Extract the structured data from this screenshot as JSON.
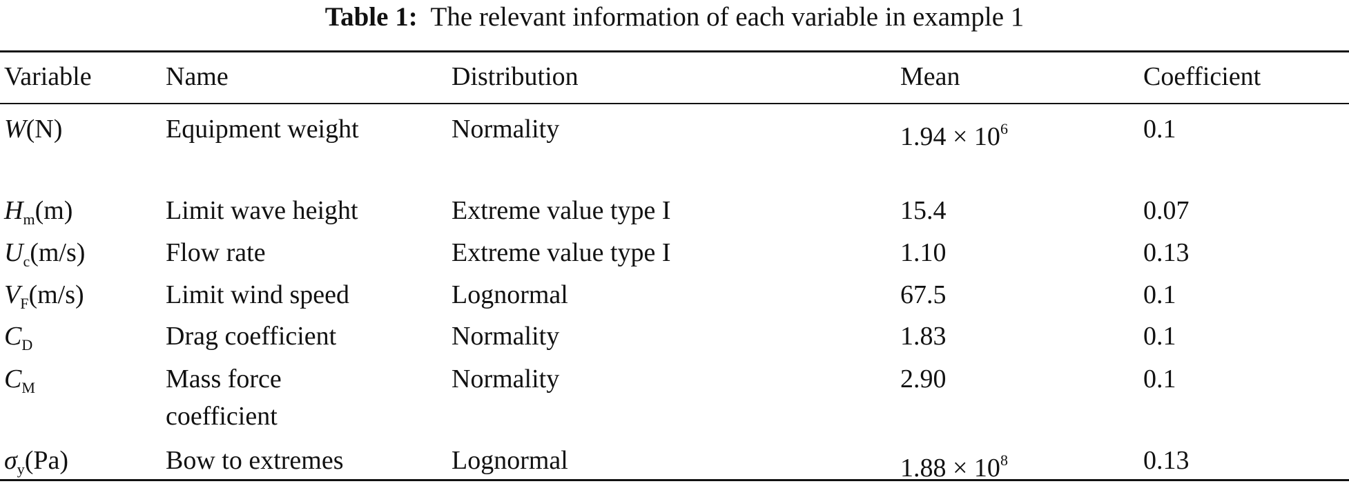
{
  "title": {
    "label": "Table 1:",
    "text": "The relevant information of each variable in example 1"
  },
  "table": {
    "header": [
      "Variable",
      "Name",
      "Distribution",
      "Mean",
      "Coefficient"
    ],
    "rows": [
      [
        {
          "symbol": "W",
          "unit": "(N)"
        },
        "Equipment weight",
        "Normality",
        {
          "base": "1.94 × 10",
          "exp": "6"
        },
        "0.1"
      ],
      [
        {
          "symbol": "H",
          "sub": "m",
          "unit": "(m)"
        },
        "Limit wave height",
        "Extreme value type I",
        "15.4",
        "0.07"
      ],
      [
        {
          "symbol": "U",
          "sub": "c",
          "unit": "(m/s)"
        },
        "Flow rate",
        "Extreme value type I",
        "1.10",
        "0.13"
      ],
      [
        {
          "symbol": "V",
          "sub": "F",
          "unit": "(m/s)"
        },
        "Limit wind speed",
        "Lognormal",
        "67.5",
        "0.1"
      ],
      [
        {
          "symbol": "C",
          "sub": "D"
        },
        "Drag coefficient",
        "Normality",
        "1.83",
        "0.1"
      ],
      [
        {
          "symbol": "C",
          "sub": "M"
        },
        "Mass force coefficient",
        "Normality",
        "2.90",
        "0.1"
      ],
      [
        {
          "symbol": "σ",
          "sub": "y",
          "unit": "(Pa)"
        },
        "Bow to extremes",
        "Lognormal",
        {
          "base": "1.88 × 10",
          "exp": "8"
        },
        "0.13"
      ]
    ]
  }
}
